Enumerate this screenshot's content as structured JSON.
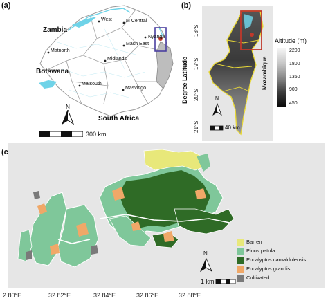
{
  "panel_a": {
    "label": "(a)",
    "countries": {
      "zambia": "Zambia",
      "botswana": "Botswana",
      "south_africa": "South Africa"
    },
    "provinces": {
      "west": "West",
      "m_central": "M Central",
      "nyanga": "Nyanga",
      "mash_east": "Mash East",
      "matnorth": "Matnorth",
      "midlands": "Midlands",
      "matsouth": "Matsouth",
      "masvingo": "Masvingo"
    },
    "north": "N",
    "scale": "300 km"
  },
  "panel_b": {
    "label": "(b)",
    "y_axis_title": "Degree Latitude",
    "y_ticks": [
      "18°S",
      "19°S",
      "20°S",
      "21°S"
    ],
    "country": "Mozambique",
    "north": "N",
    "scale": "40 km",
    "legend": {
      "title": "Altitude (m)",
      "ticks": [
        "2200",
        "1800",
        "1350",
        "900",
        "450"
      ]
    }
  },
  "panel_c": {
    "label": "(c)",
    "x_ticks": [
      "2.80°E",
      "32.82°E",
      "32.84°E",
      "32.86°E",
      "32.88°E"
    ],
    "north": "N",
    "scale": "1 km",
    "legend": [
      {
        "name": "Barren",
        "color": "#e8e87a"
      },
      {
        "name": "Pinus patula",
        "color": "#7fc79a"
      },
      {
        "name": "Eucalyptus camaldulensis",
        "color": "#2f6b26"
      },
      {
        "name": "Eucalyptus grandis",
        "color": "#f0a868"
      },
      {
        "name": "Cultivated",
        "color": "#7a7a7a"
      }
    ]
  },
  "colors": {
    "panel_bg": "#e6e6e6",
    "water": "#6fd3e8",
    "inset_box": "#c0392b"
  }
}
